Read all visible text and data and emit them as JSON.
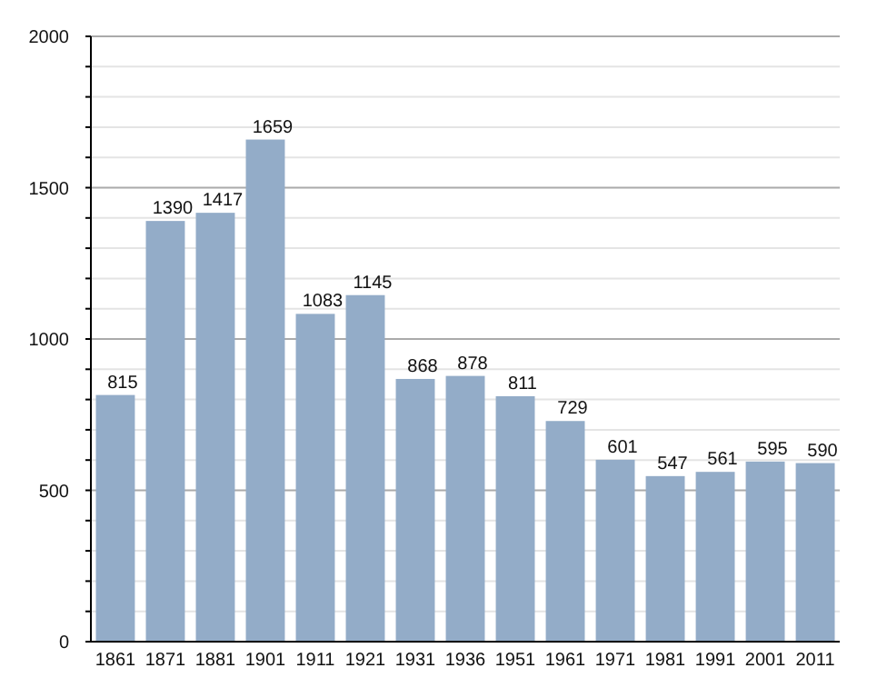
{
  "chart_data": {
    "type": "bar",
    "categories": [
      "1861",
      "1871",
      "1881",
      "1901",
      "1911",
      "1921",
      "1931",
      "1936",
      "1951",
      "1961",
      "1971",
      "1981",
      "1991",
      "2001",
      "2011"
    ],
    "values": [
      815,
      1390,
      1417,
      1659,
      1083,
      1145,
      868,
      878,
      811,
      729,
      601,
      547,
      561,
      595,
      590
    ],
    "color": "#93acc8",
    "ylim": [
      0,
      2000
    ],
    "yticks": [
      0,
      {
        "value": 100,
        "label": null
      },
      {
        "value": 200,
        "label": null
      },
      {
        "value": 300,
        "label": null
      },
      {
        "value": 400,
        "label": null
      },
      500,
      {
        "value": 600,
        "label": null
      },
      {
        "value": 700,
        "label": null
      },
      {
        "value": 800,
        "label": null
      },
      {
        "value": 900,
        "label": null
      },
      1000,
      {
        "value": 1100,
        "label": null
      },
      {
        "value": 1200,
        "label": null
      },
      {
        "value": 1300,
        "label": null
      },
      {
        "value": 1400,
        "label": null
      },
      1500,
      {
        "value": 1600,
        "label": null
      },
      {
        "value": 1700,
        "label": null
      },
      {
        "value": 1800,
        "label": null
      },
      {
        "value": 1900,
        "label": null
      },
      2000
    ],
    "grid": true,
    "data_labels": true
  }
}
